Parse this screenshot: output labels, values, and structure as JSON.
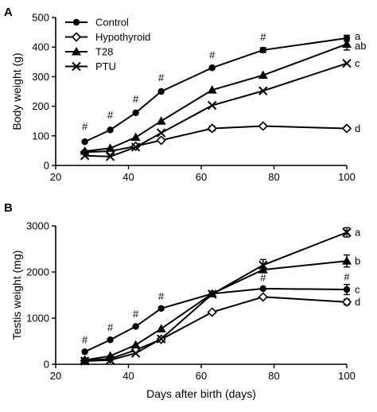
{
  "chart_data": [
    {
      "type": "line",
      "panel": "A",
      "title": "",
      "xlabel": "",
      "ylabel": "Body weight (g)",
      "xlim": [
        20,
        100
      ],
      "ylim": [
        0,
        500
      ],
      "xticks": [
        20,
        40,
        60,
        80,
        100
      ],
      "yticks": [
        0,
        100,
        200,
        300,
        400,
        500
      ],
      "grid": false,
      "legend": {
        "position": "top-left",
        "entries": [
          "Control",
          "Hypothyroid",
          "T28",
          "PTU"
        ]
      },
      "x": [
        28,
        35,
        42,
        49,
        63,
        77,
        100
      ],
      "series": [
        {
          "name": "Control",
          "marker": "circle",
          "values": [
            80,
            120,
            178,
            250,
            330,
            390,
            430
          ],
          "errors": [
            0,
            0,
            0,
            0,
            0,
            8,
            10
          ]
        },
        {
          "name": "Hypothyroid",
          "marker": "diamond",
          "values": [
            45,
            48,
            65,
            85,
            125,
            133,
            125
          ],
          "errors": [
            0,
            0,
            0,
            0,
            8,
            6,
            6
          ]
        },
        {
          "name": "T28",
          "marker": "triangle",
          "values": [
            48,
            58,
            95,
            150,
            255,
            305,
            410
          ],
          "errors": [
            0,
            0,
            0,
            0,
            0,
            0,
            20
          ]
        },
        {
          "name": "PTU",
          "marker": "x",
          "values": [
            33,
            30,
            62,
            110,
            203,
            252,
            345
          ],
          "errors": [
            0,
            0,
            0,
            0,
            0,
            0,
            0
          ]
        }
      ],
      "hash_marks": [
        {
          "x": 28,
          "y": 120,
          "text": "#"
        },
        {
          "x": 35,
          "y": 158,
          "text": "#"
        },
        {
          "x": 42,
          "y": 212,
          "text": "#"
        },
        {
          "x": 49,
          "y": 285,
          "text": "#"
        },
        {
          "x": 63,
          "y": 362,
          "text": "#"
        },
        {
          "x": 77,
          "y": 422,
          "text": "#"
        }
      ],
      "end_labels": [
        {
          "series": "Control",
          "y": 437,
          "text": "a"
        },
        {
          "series": "T28",
          "y": 405,
          "text": "ab"
        },
        {
          "series": "PTU",
          "y": 345,
          "text": "c"
        },
        {
          "series": "Hypothyroid",
          "y": 125,
          "text": "d"
        }
      ]
    },
    {
      "type": "line",
      "panel": "B",
      "title": "",
      "xlabel": "Days after birth (days)",
      "ylabel": "Testis weight (mg)",
      "xlim": [
        20,
        100
      ],
      "ylim": [
        0,
        3000
      ],
      "xticks": [
        20,
        40,
        60,
        80,
        100
      ],
      "yticks": [
        0,
        1000,
        2000,
        3000
      ],
      "grid": false,
      "x": [
        28,
        35,
        42,
        49,
        63,
        77,
        100
      ],
      "series": [
        {
          "name": "Control",
          "marker": "circle",
          "values": [
            270,
            530,
            820,
            1210,
            1530,
            1640,
            1620
          ],
          "errors": [
            0,
            0,
            0,
            0,
            0,
            0,
            110
          ]
        },
        {
          "name": "Hypothyroid",
          "marker": "diamond",
          "values": [
            80,
            120,
            310,
            540,
            1130,
            1460,
            1350
          ],
          "errors": [
            0,
            0,
            0,
            0,
            0,
            0,
            60
          ]
        },
        {
          "name": "T28",
          "marker": "triangle",
          "values": [
            90,
            180,
            420,
            770,
            1530,
            2050,
            2240
          ],
          "errors": [
            0,
            0,
            0,
            0,
            0,
            0,
            130
          ]
        },
        {
          "name": "PTU",
          "marker": "x",
          "values": [
            70,
            90,
            240,
            550,
            1520,
            2150,
            2860
          ],
          "errors": [
            0,
            0,
            0,
            0,
            0,
            120,
            100
          ]
        }
      ],
      "hash_marks": [
        {
          "x": 28,
          "y": 460,
          "text": "#"
        },
        {
          "x": 35,
          "y": 720,
          "text": "#"
        },
        {
          "x": 42,
          "y": 1020,
          "text": "#"
        },
        {
          "x": 49,
          "y": 1400,
          "text": "#"
        },
        {
          "x": 77,
          "y": 1800,
          "text": "#"
        },
        {
          "x": 100,
          "y": 1820,
          "text": "#"
        }
      ],
      "end_labels": [
        {
          "series": "PTU",
          "y": 2860,
          "text": "a"
        },
        {
          "series": "T28",
          "y": 2240,
          "text": "b"
        },
        {
          "series": "Control",
          "y": 1620,
          "text": "c"
        },
        {
          "series": "Hypothyroid",
          "y": 1350,
          "text": "d"
        }
      ]
    }
  ]
}
